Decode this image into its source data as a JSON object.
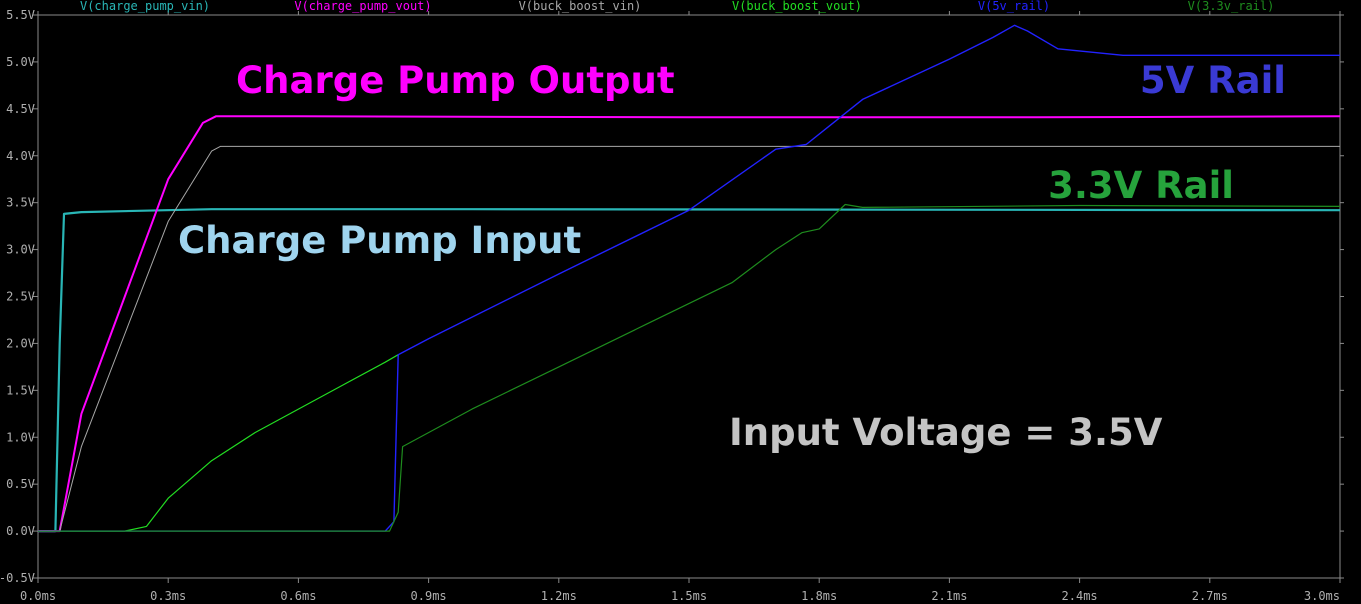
{
  "chart_data": {
    "type": "line",
    "xlabel": "",
    "ylabel": "",
    "xlim": [
      0.0,
      3.0
    ],
    "ylim": [
      -0.5,
      5.5
    ],
    "grid": false,
    "x_tick_labels": [
      "0.0ms",
      "0.3ms",
      "0.6ms",
      "0.9ms",
      "1.2ms",
      "1.5ms",
      "1.8ms",
      "2.1ms",
      "2.4ms",
      "2.7ms",
      "3.0ms"
    ],
    "x_tick_values": [
      0.0,
      0.3,
      0.6,
      0.9,
      1.2,
      1.5,
      1.8,
      2.1,
      2.4,
      2.7,
      3.0
    ],
    "y_tick_labels": [
      "-0.5V",
      "0.0V",
      "0.5V",
      "1.0V",
      "1.5V",
      "2.0V",
      "2.5V",
      "3.0V",
      "3.5V",
      "4.0V",
      "4.5V",
      "5.0V",
      "5.5V"
    ],
    "y_tick_values": [
      -0.5,
      0.0,
      0.5,
      1.0,
      1.5,
      2.0,
      2.5,
      3.0,
      3.5,
      4.0,
      4.5,
      5.0,
      5.5
    ],
    "legend_position": "top",
    "series": [
      {
        "name": "V(charge_pump_vin)",
        "color": "#29b6b6",
        "x": [
          0.0,
          0.04,
          0.05,
          0.06,
          0.1,
          0.4,
          1.0,
          3.0
        ],
        "y": [
          0.0,
          0.0,
          2.0,
          3.38,
          3.4,
          3.43,
          3.43,
          3.42
        ]
      },
      {
        "name": "V(charge_pump_vout)",
        "color": "#ff00ff",
        "x": [
          0.0,
          0.05,
          0.1,
          0.2,
          0.3,
          0.38,
          0.41,
          0.6,
          1.5,
          2.3,
          3.0
        ],
        "y": [
          0.0,
          0.0,
          1.25,
          2.5,
          3.75,
          4.35,
          4.42,
          4.42,
          4.41,
          4.41,
          4.42
        ]
      },
      {
        "name": "V(buck_boost_vin)",
        "color": "#a8a8a8",
        "x": [
          0.0,
          0.05,
          0.1,
          0.2,
          0.3,
          0.4,
          0.42,
          0.6,
          1.5,
          3.0
        ],
        "y": [
          0.0,
          0.0,
          0.9,
          2.1,
          3.3,
          4.05,
          4.1,
          4.1,
          4.1,
          4.1
        ]
      },
      {
        "name": "V(buck_boost_vout)",
        "color": "#22dd22",
        "x": [
          0.0,
          0.2,
          0.25,
          0.3,
          0.4,
          0.5,
          0.6,
          0.7,
          0.8,
          0.83
        ],
        "y": [
          0.0,
          0.0,
          0.05,
          0.35,
          0.75,
          1.05,
          1.3,
          1.55,
          1.8,
          1.88
        ]
      },
      {
        "name": "V(5v_rail)",
        "color": "#2222ff",
        "x": [
          0.0,
          0.8,
          0.82,
          0.83,
          0.9,
          1.2,
          1.5,
          1.7,
          1.77,
          1.9,
          2.1,
          2.2,
          2.25,
          2.28,
          2.35,
          2.5,
          3.0
        ],
        "y": [
          0.0,
          0.0,
          0.1,
          1.88,
          2.05,
          2.74,
          3.42,
          4.07,
          4.12,
          4.6,
          5.03,
          5.26,
          5.39,
          5.33,
          5.14,
          5.07,
          5.07
        ]
      },
      {
        "name": "V(3.3v_rail)",
        "color": "#1e8c1e",
        "x": [
          0.0,
          0.81,
          0.83,
          0.84,
          1.0,
          1.2,
          1.4,
          1.6,
          1.7,
          1.76,
          1.8,
          1.86,
          1.9,
          2.4,
          3.0
        ],
        "y": [
          0.0,
          0.0,
          0.2,
          0.9,
          1.3,
          1.75,
          2.2,
          2.65,
          3.0,
          3.18,
          3.22,
          3.48,
          3.45,
          3.47,
          3.46
        ]
      }
    ],
    "annotations": [
      {
        "text": "Charge Pump Output",
        "color": "#ff00ff"
      },
      {
        "text": "5V Rail",
        "color": "#3a3ad4"
      },
      {
        "text": "3.3V Rail",
        "color": "#26a33c"
      },
      {
        "text": "Charge Pump Input",
        "color": "#9fd4ee"
      },
      {
        "text": "Input Voltage = 3.5V",
        "color": "#c4c4c4"
      }
    ]
  }
}
